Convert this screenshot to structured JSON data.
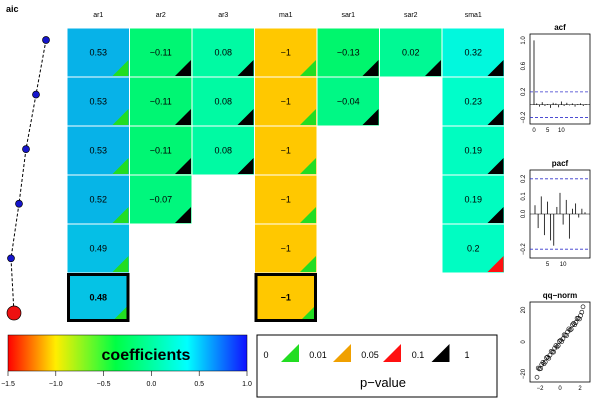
{
  "aic_label": "aic",
  "colorbar": {
    "label": "coefficients",
    "ticks": [
      "−1.5",
      "−1.0",
      "−0.5",
      "0.0",
      "0.5",
      "1.0"
    ]
  },
  "pvalue": {
    "title": "p−value",
    "ticks": [
      "0",
      "0.01",
      "0.05",
      "0.1",
      "1"
    ],
    "colors": [
      "#22dd22",
      "#f0a000",
      "#ff1010",
      "#000000"
    ]
  },
  "chart_data": [
    {
      "type": "heatmap",
      "columns": [
        "ar1",
        "ar2",
        "ar3",
        "ma1",
        "sar1",
        "sar2",
        "sma1"
      ],
      "rows": [
        {
          "cells": [
            [
              "0.53",
              0.53,
              "green"
            ],
            [
              "−0.11",
              -0.11,
              "black"
            ],
            [
              "0.08",
              0.08,
              "black"
            ],
            [
              "−1",
              -1,
              "green"
            ],
            [
              "−0.13",
              -0.13,
              "black"
            ],
            [
              "0.02",
              0.02,
              "black"
            ],
            [
              "0.32",
              0.32,
              "black"
            ]
          ]
        },
        {
          "cells": [
            [
              "0.53",
              0.53,
              "green"
            ],
            [
              "−0.11",
              -0.11,
              "black"
            ],
            [
              "0.08",
              0.08,
              "black"
            ],
            [
              "−1",
              -1,
              "green"
            ],
            [
              "−0.04",
              -0.04,
              "black"
            ],
            null,
            [
              "0.23",
              0.23,
              "black"
            ]
          ]
        },
        {
          "cells": [
            [
              "0.53",
              0.53,
              "green"
            ],
            [
              "−0.11",
              -0.11,
              "black"
            ],
            [
              "0.08",
              0.08,
              "black"
            ],
            [
              "−1",
              -1,
              "green"
            ],
            null,
            null,
            [
              "0.19",
              0.19,
              "black"
            ]
          ]
        },
        {
          "cells": [
            [
              "0.52",
              0.52,
              "green"
            ],
            [
              "−0.07",
              -0.07,
              "black"
            ],
            null,
            [
              "−1",
              -1,
              "green"
            ],
            null,
            null,
            [
              "0.19",
              0.19,
              "black"
            ]
          ]
        },
        {
          "cells": [
            [
              "0.49",
              0.49,
              "green"
            ],
            null,
            null,
            [
              "−1",
              -1,
              "green"
            ],
            null,
            null,
            [
              "0.2",
              0.2,
              "red"
            ]
          ]
        },
        {
          "cells": [
            [
              "0.48",
              0.48,
              "green"
            ],
            null,
            null,
            [
              "−1",
              -1,
              "green"
            ],
            null,
            null,
            null
          ],
          "best": true
        }
      ],
      "aic_rank": [
        1,
        2,
        3,
        4,
        5,
        6
      ]
    },
    {
      "type": "bar",
      "title": "acf",
      "yticks": [
        "−0.2",
        "0.2",
        "0.6",
        "1.0"
      ],
      "xticks": [
        "0",
        "5",
        "10"
      ],
      "values": [
        1.0,
        0.02,
        -0.03,
        0.04,
        -0.02,
        0.01,
        -0.05,
        0.03,
        0.02,
        -0.04,
        0.05,
        -0.02,
        0.03,
        -0.01,
        0.02,
        -0.03,
        0.01,
        0.02,
        -0.02,
        0.01
      ],
      "bounds": [
        -0.2,
        0.2
      ],
      "ylim": [
        -0.3,
        1.1
      ]
    },
    {
      "type": "bar",
      "title": "pacf",
      "yticks": [
        "−0.2",
        "0.0",
        "0.1",
        "0.2"
      ],
      "xticks": [
        "5",
        "10"
      ],
      "values": [
        0.05,
        -0.08,
        0.1,
        -0.12,
        0.07,
        -0.15,
        -0.18,
        0.04,
        0.12,
        -0.06,
        0.08,
        -0.14,
        0.03,
        0.06,
        -0.02,
        0.03,
        0.01
      ],
      "bounds": [
        -0.2,
        0.2
      ],
      "ylim": [
        -0.25,
        0.25
      ]
    },
    {
      "type": "scatter",
      "title": "qq−norm",
      "xticks": [
        "−2",
        "0",
        "2"
      ],
      "yticks": [
        "−20",
        "0",
        "20"
      ],
      "xlim": [
        -3,
        3
      ],
      "ylim": [
        -25,
        25
      ]
    }
  ]
}
